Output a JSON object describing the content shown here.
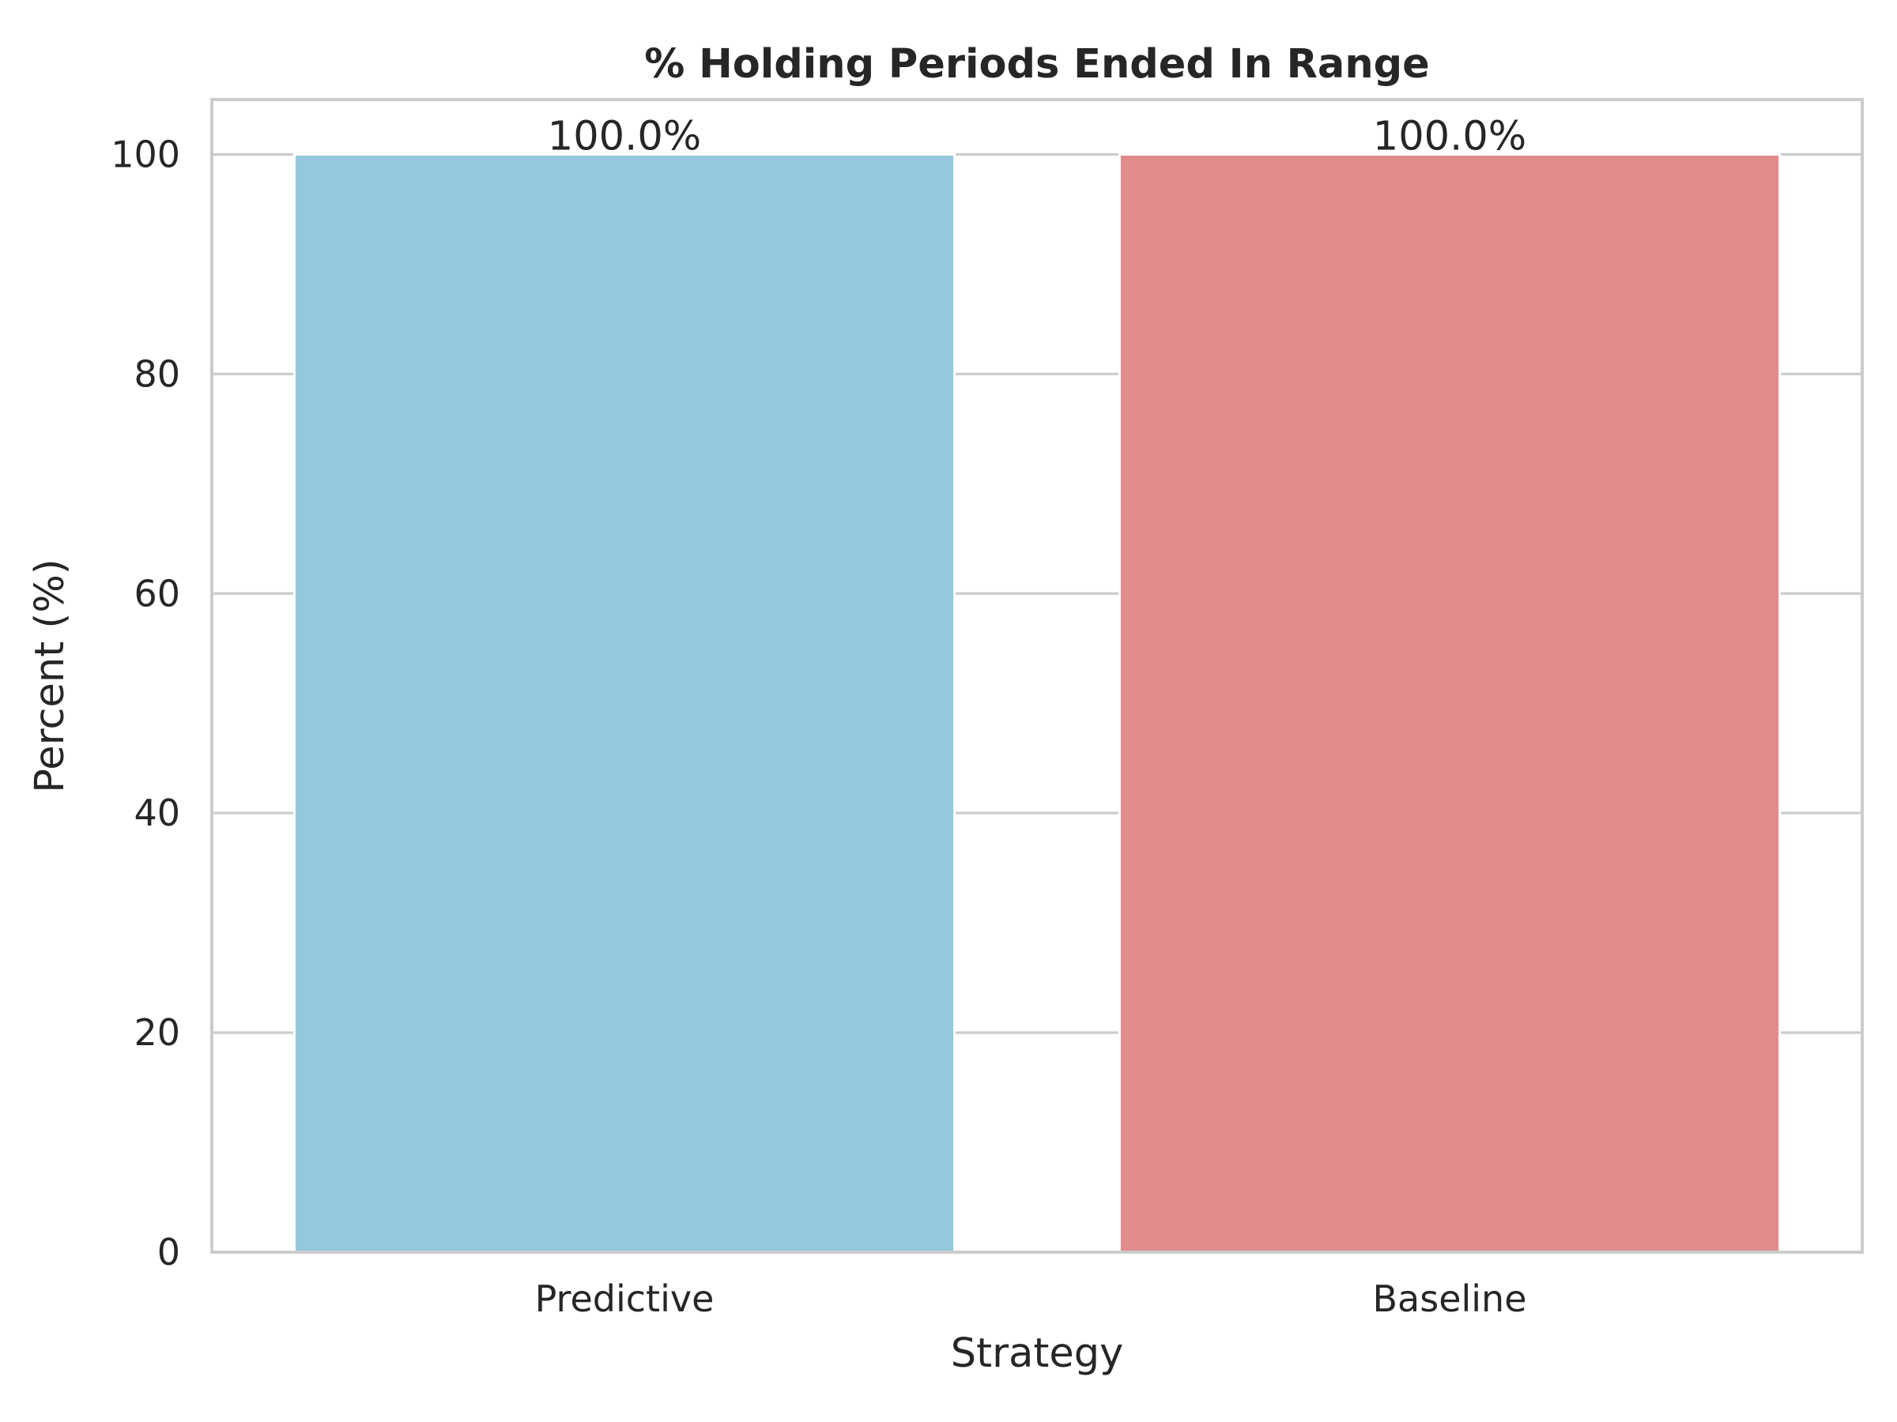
{
  "chart_data": {
    "type": "bar",
    "title": "% Holding Periods Ended In Range",
    "xlabel": "Strategy",
    "ylabel": "Percent (%)",
    "categories": [
      "Predictive",
      "Baseline"
    ],
    "values": [
      100.0,
      100.0
    ],
    "data_labels": [
      "100.0%",
      "100.0%"
    ],
    "bar_colors": [
      "#96c8dd",
      "#e18b8d"
    ],
    "ylim": [
      0,
      105
    ],
    "yticks": [
      0,
      20,
      40,
      60,
      80,
      100
    ],
    "ytick_labels": [
      "0",
      "20",
      "40",
      "60",
      "80",
      "100"
    ],
    "grid": true,
    "grid_axis": "y",
    "legend": false
  },
  "colors": {
    "grid": "#cccccc",
    "spine": "#cccccc",
    "text": "#262626",
    "background": "#ffffff"
  }
}
